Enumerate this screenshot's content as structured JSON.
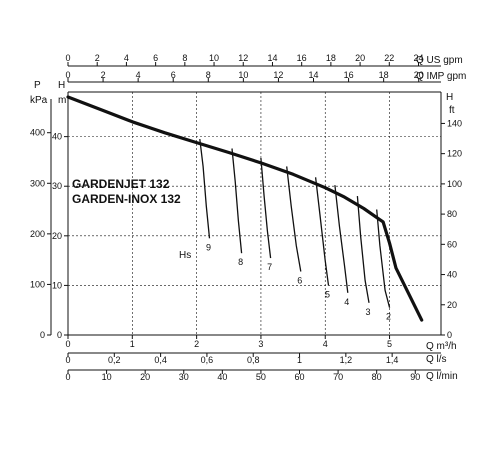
{
  "chart_data": {
    "type": "line",
    "title": "",
    "models": [
      "GARDENJET 132",
      "GARDEN-INOX 132"
    ],
    "hs_label": "Hs",
    "axes": {
      "bottom_q_m3h": {
        "unit_label": "Q m³/h",
        "range": [
          0,
          5.8
        ],
        "ticks": [
          0,
          1,
          2,
          3,
          4,
          5
        ]
      },
      "bottom_q_ls": {
        "unit_label": "Q l/s",
        "range": [
          0,
          1.611
        ],
        "ticks": [
          0,
          0.2,
          0.4,
          0.6,
          0.8,
          1,
          1.2,
          1.4
        ],
        "tick_labels": [
          "0",
          "0,2",
          "0,4",
          "0,6",
          "0,8",
          "1",
          "1,2",
          "1,4"
        ]
      },
      "bottom_q_lmin": {
        "unit_label": "Q l/min",
        "range": [
          0,
          96.67
        ],
        "ticks": [
          0,
          10,
          20,
          30,
          40,
          50,
          60,
          70,
          80,
          90
        ]
      },
      "top_us_gpm": {
        "unit_label": "Q US gpm",
        "range": [
          0,
          25.54
        ],
        "ticks": [
          0,
          2,
          4,
          6,
          8,
          10,
          12,
          14,
          16,
          18,
          20,
          22,
          24
        ]
      },
      "top_imp_gpm": {
        "unit_label": "Q IMP gpm",
        "range": [
          0,
          21.27
        ],
        "ticks": [
          0,
          2,
          4,
          6,
          8,
          10,
          12,
          14,
          16,
          18,
          20
        ]
      },
      "left_h_m": {
        "unit_label": "H",
        "unit_sub": "m",
        "range": [
          0,
          49
        ],
        "ticks": [
          0,
          10,
          20,
          30,
          40
        ]
      },
      "left_p_kpa": {
        "unit_label": "P",
        "unit_sub": "kPa",
        "range": [
          0,
          480.5
        ],
        "ticks": [
          0,
          100,
          200,
          300,
          400
        ]
      },
      "right_h_ft": {
        "unit_label": "H",
        "unit_sub": "ft",
        "range": [
          0,
          160.8
        ],
        "ticks": [
          0,
          20,
          40,
          60,
          80,
          100,
          120,
          140
        ]
      }
    },
    "grid": true,
    "main_curve": {
      "x": [
        0,
        0.5,
        1,
        1.5,
        2,
        2.5,
        3,
        3.5,
        4,
        4.3,
        4.6,
        4.9,
        5.0,
        5.1,
        5.5
      ],
      "y": [
        48,
        45.5,
        43,
        40.8,
        38.8,
        36.8,
        34.7,
        32.4,
        29.7,
        27.8,
        25.5,
        22.8,
        18.5,
        13.5,
        3
      ]
    },
    "suction_curves": [
      {
        "label": "9",
        "x": [
          2.05,
          2.1,
          2.15,
          2.2
        ],
        "y": [
          39.5,
          34,
          26,
          19.5
        ]
      },
      {
        "label": "8",
        "x": [
          2.55,
          2.6,
          2.65,
          2.7
        ],
        "y": [
          37.6,
          31,
          23,
          16.5
        ]
      },
      {
        "label": "7",
        "x": [
          3.0,
          3.05,
          3.1,
          3.15
        ],
        "y": [
          35.7,
          28,
          21,
          15.5
        ]
      },
      {
        "label": "6",
        "x": [
          3.4,
          3.47,
          3.55,
          3.62
        ],
        "y": [
          34.0,
          26,
          18,
          12.8
        ]
      },
      {
        "label": "5",
        "x": [
          3.85,
          3.92,
          4.0,
          4.05
        ],
        "y": [
          31.8,
          24,
          15,
          10.0
        ]
      },
      {
        "label": "4",
        "x": [
          4.15,
          4.22,
          4.3,
          4.35
        ],
        "y": [
          30.2,
          22,
          14,
          8.5
        ]
      },
      {
        "label": "3",
        "x": [
          4.5,
          4.55,
          4.62,
          4.68
        ],
        "y": [
          28.0,
          20,
          11,
          6.5
        ]
      },
      {
        "label": "2",
        "x": [
          4.8,
          4.85,
          4.93,
          5.0
        ],
        "y": [
          25.3,
          18,
          9,
          5.5
        ]
      }
    ]
  }
}
